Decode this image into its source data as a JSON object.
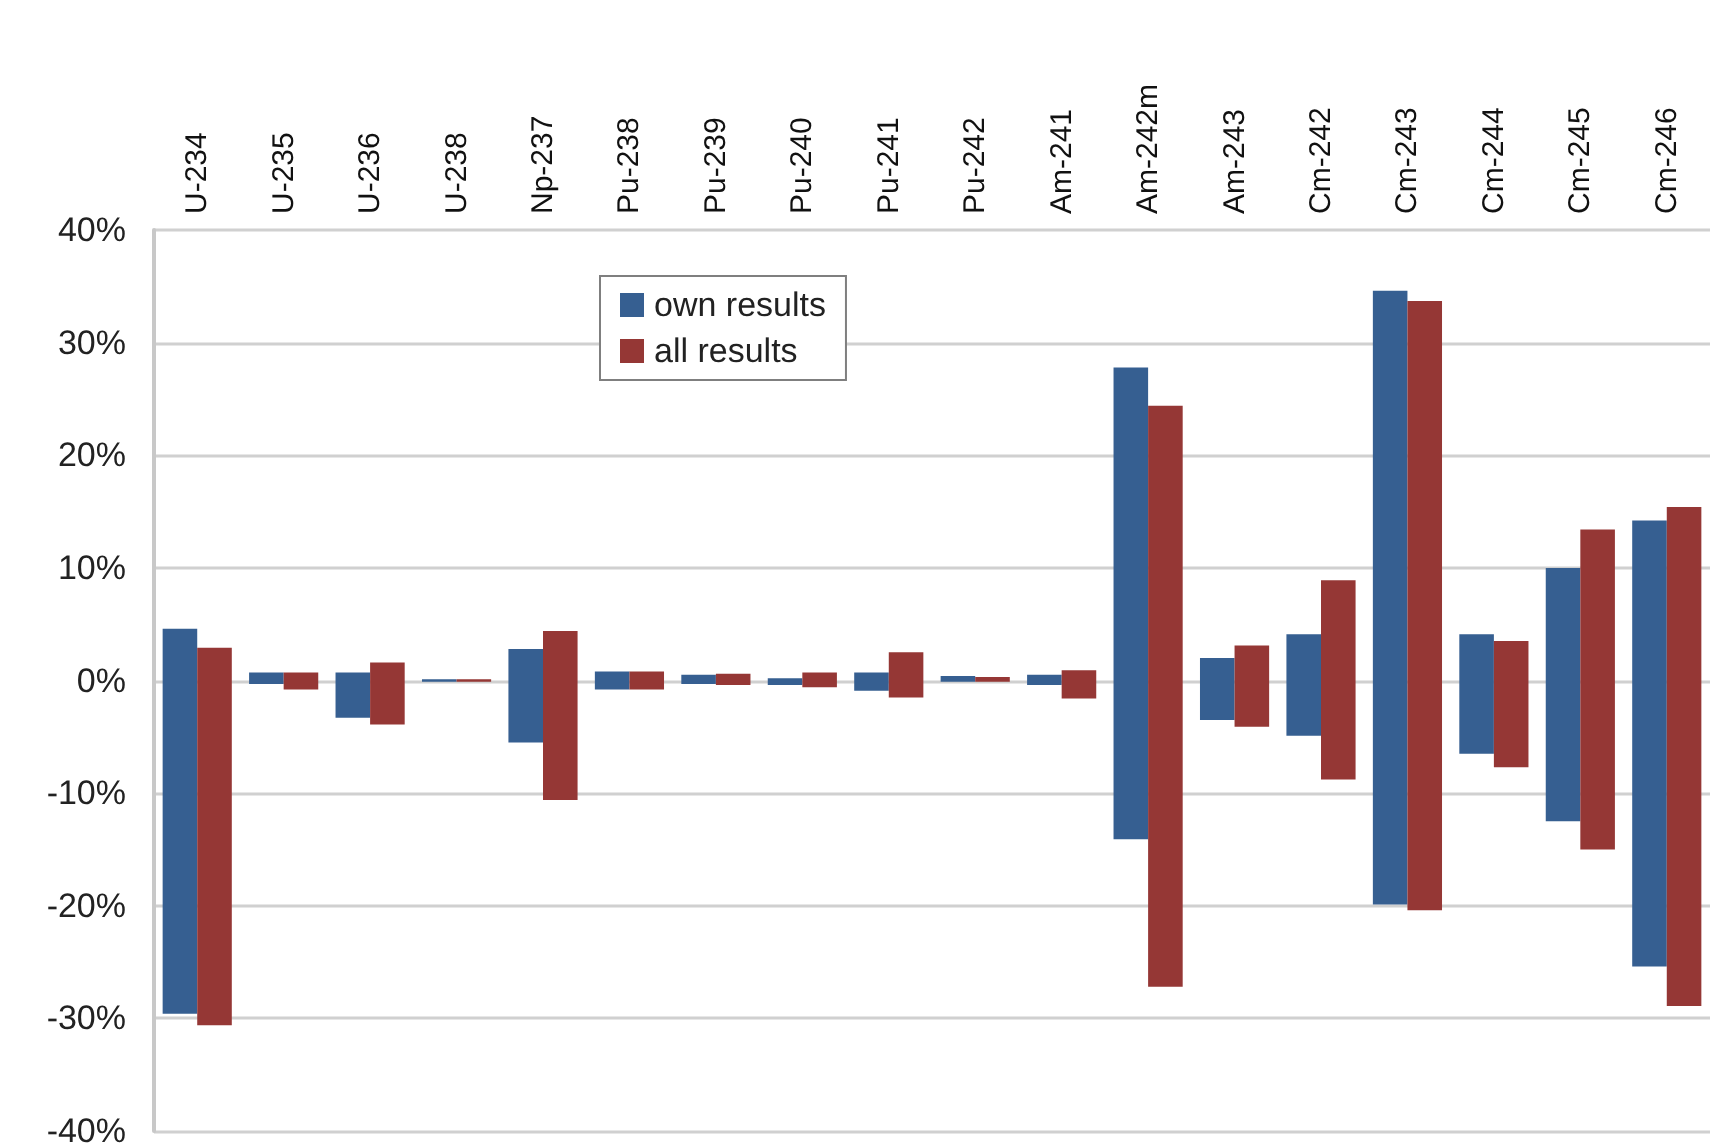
{
  "chart_data": {
    "type": "bar",
    "categories": [
      "U-234",
      "U-235",
      "U-236",
      "U-238",
      "Np-237",
      "Pu-238",
      "Pu-239",
      "Pu-240",
      "Pu-241",
      "Pu-242",
      "Am-241",
      "Am-242m",
      "Am-243",
      "Cm-242",
      "Cm-243",
      "Cm-244",
      "Cm-245",
      "Cm-246"
    ],
    "series": [
      {
        "name": "own results",
        "color": "#365f91",
        "base": [
          -29.6,
          -0.3,
          -3.3,
          -0.1,
          -5.5,
          -0.8,
          -0.3,
          -0.4,
          -0.9,
          -0.1,
          -0.4,
          -14.1,
          -3.5,
          -4.9,
          -19.9,
          -6.5,
          -12.5,
          -25.4
        ],
        "values": [
          34.2,
          1.0,
          4.0,
          0.2,
          8.3,
          1.6,
          0.8,
          0.6,
          1.6,
          0.5,
          0.9,
          41.9,
          5.5,
          9.0,
          54.5,
          10.6,
          22.5,
          39.6
        ]
      },
      {
        "name": "all results",
        "color": "#953735",
        "base": [
          -30.6,
          -0.8,
          -3.9,
          -0.1,
          -10.6,
          -0.8,
          -0.4,
          -0.6,
          -1.5,
          -0.1,
          -1.6,
          -27.2,
          -4.1,
          -8.8,
          -20.4,
          -7.7,
          -15.0,
          -28.9
        ],
        "values": [
          33.5,
          1.5,
          5.5,
          0.2,
          15.0,
          1.6,
          1.0,
          1.3,
          4.0,
          0.4,
          2.5,
          51.6,
          7.2,
          17.7,
          54.1,
          11.2,
          28.4,
          44.3
        ]
      }
    ],
    "ylim": [
      -40,
      40
    ],
    "yticks": [
      {
        "value": -40,
        "label": "-40%"
      },
      {
        "value": -30,
        "label": "-30%"
      },
      {
        "value": -20,
        "label": "-20%"
      },
      {
        "value": -10,
        "label": "-10%"
      },
      {
        "value": 0,
        "label": "0%"
      },
      {
        "value": 10,
        "label": "10%"
      },
      {
        "value": 20,
        "label": "20%"
      },
      {
        "value": 30,
        "label": "30%"
      },
      {
        "value": 40,
        "label": "40%"
      }
    ],
    "grid": "y",
    "legend": "top"
  }
}
